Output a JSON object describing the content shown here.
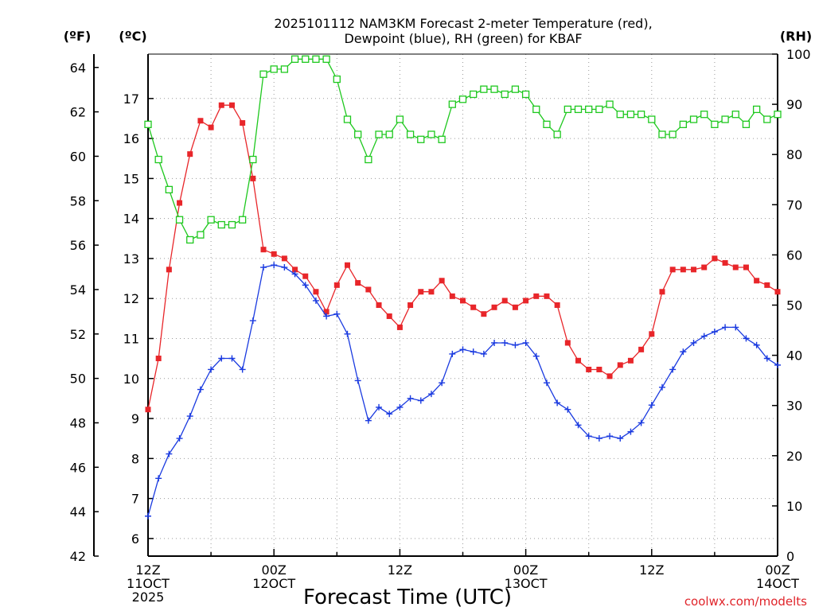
{
  "chart_data": {
    "type": "line",
    "title_line1": "2025101112 NAM3KM Forecast 2-meter Temperature (red),",
    "title_line2": "Dewpoint (blue), RH (green) for KBAF",
    "xlabel": "Forecast Time (UTC)",
    "unit_f": "(ºF)",
    "unit_c": "(ºC)",
    "unit_rh": "(RH)",
    "credit": "coolwx.com/modelts",
    "x_range_hours": [
      0,
      60
    ],
    "f_range": [
      42,
      64.6
    ],
    "c_range": [
      5.56,
      18.11
    ],
    "rh_range": [
      0,
      100
    ],
    "f_ticks": [
      42,
      44,
      46,
      48,
      50,
      52,
      54,
      56,
      58,
      60,
      62,
      64
    ],
    "c_ticks": [
      6,
      7,
      8,
      9,
      10,
      11,
      12,
      13,
      14,
      15,
      16,
      17
    ],
    "rh_ticks": [
      0,
      10,
      20,
      30,
      40,
      50,
      60,
      70,
      80,
      90,
      100
    ],
    "x_ticks": [
      {
        "h": 0,
        "lines": [
          "12Z",
          "11OCT",
          "2025"
        ]
      },
      {
        "h": 12,
        "lines": [
          "00Z",
          "12OCT"
        ]
      },
      {
        "h": 24,
        "lines": [
          "12Z"
        ]
      },
      {
        "h": 36,
        "lines": [
          "00Z",
          "13OCT"
        ]
      },
      {
        "h": 48,
        "lines": [
          "12Z"
        ]
      },
      {
        "h": 60,
        "lines": [
          "00Z",
          "14OCT"
        ]
      }
    ],
    "series": [
      {
        "name": "2-meter Temperature",
        "color": "#e8262a",
        "marker": "filled-square",
        "axis": "F",
        "values": [
          48.6,
          50.9,
          54.9,
          57.9,
          60.1,
          61.6,
          61.3,
          62.3,
          62.3,
          61.5,
          59.0,
          55.8,
          55.6,
          55.4,
          54.9,
          54.6,
          53.9,
          53.0,
          54.2,
          55.1,
          54.3,
          54.0,
          53.3,
          52.8,
          52.3,
          53.3,
          53.9,
          53.9,
          54.4,
          53.7,
          53.5,
          53.2,
          52.9,
          53.2,
          53.5,
          53.2,
          53.5,
          53.7,
          53.7,
          53.3,
          51.6,
          50.8,
          50.4,
          50.4,
          50.1,
          50.6,
          50.8,
          51.3,
          52.0,
          53.9,
          54.9,
          54.9,
          54.9,
          55.0,
          55.4,
          55.2,
          55.0,
          55.0,
          54.4,
          54.2,
          53.9
        ]
      },
      {
        "name": "Dewpoint",
        "color": "#1a3ae0",
        "marker": "plus",
        "axis": "F",
        "values": [
          43.8,
          45.5,
          46.6,
          47.3,
          48.3,
          49.5,
          50.4,
          50.9,
          50.9,
          50.4,
          52.6,
          55.0,
          55.1,
          55.0,
          54.7,
          54.2,
          53.5,
          52.8,
          52.9,
          52.0,
          49.9,
          48.1,
          48.7,
          48.4,
          48.7,
          49.1,
          49.0,
          49.3,
          49.8,
          51.1,
          51.3,
          51.2,
          51.1,
          51.6,
          51.6,
          51.5,
          51.6,
          51.0,
          49.8,
          48.9,
          48.6,
          47.9,
          47.4,
          47.3,
          47.4,
          47.3,
          47.6,
          48.0,
          48.8,
          49.6,
          50.4,
          51.2,
          51.6,
          51.9,
          52.1,
          52.3,
          52.3,
          51.8,
          51.5,
          50.9,
          50.6
        ]
      },
      {
        "name": "RH",
        "color": "#1ec81e",
        "marker": "open-square",
        "axis": "RH",
        "values": [
          86,
          79,
          73,
          67,
          63,
          64,
          67,
          66,
          66,
          67,
          79,
          96,
          97,
          97,
          99,
          99,
          99,
          99,
          95,
          87,
          84,
          79,
          84,
          84,
          87,
          84,
          83,
          84,
          83,
          90,
          91,
          92,
          93,
          93,
          92,
          93,
          92,
          89,
          86,
          84,
          89,
          89,
          89,
          89,
          90,
          88,
          88,
          88,
          87,
          84,
          84,
          86,
          87,
          88,
          86,
          87,
          88,
          86,
          89,
          87,
          88
        ]
      }
    ]
  }
}
